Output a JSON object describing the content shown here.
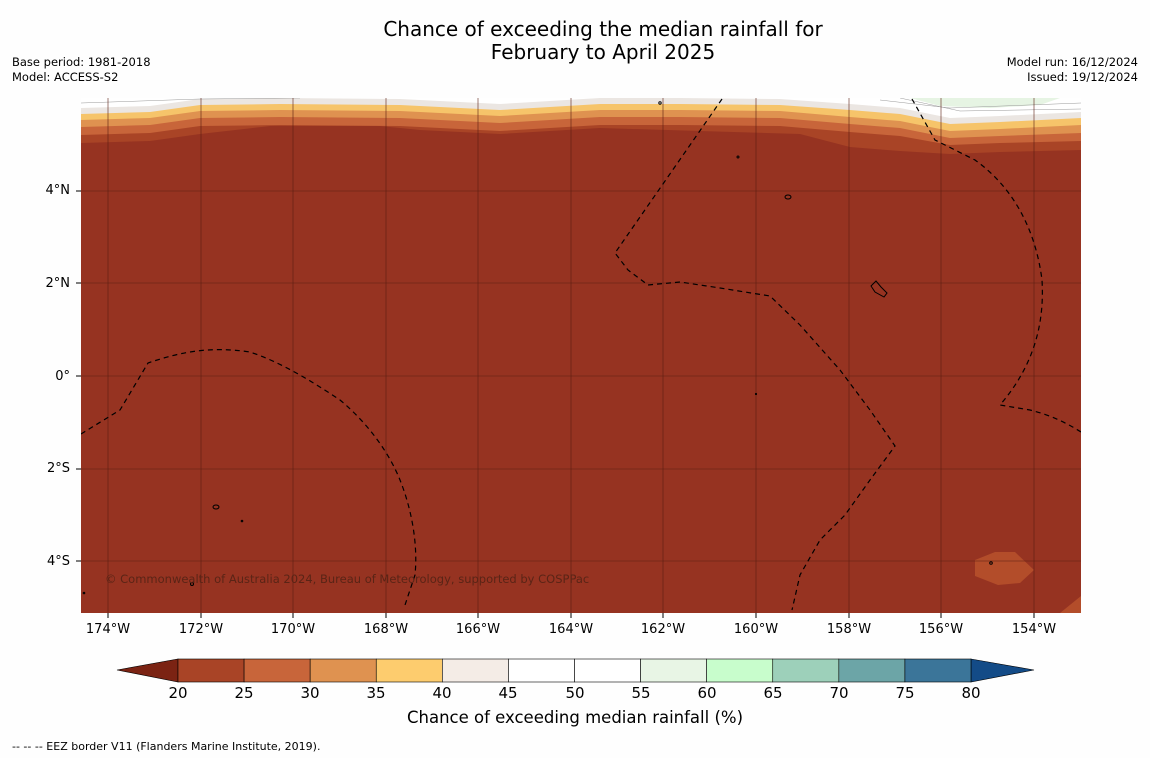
{
  "title_line1": "Chance of exceeding the median rainfall for",
  "title_line2": "February to April 2025",
  "meta": {
    "base_period": "Base period: 1981-2018",
    "model": "Model: ACCESS-S2",
    "model_run": "Model run: 16/12/2024",
    "issued": "Issued: 19/12/2024"
  },
  "copyright": "© Commonwealth of Australia 2024, Bureau of Meteorology, supported by COSPPac",
  "footnote": "--  --  -- EEZ border V11 (Flanders Marine Institute, 2019).",
  "lat_labels": [
    "4°N",
    "2°N",
    "0°",
    "2°S",
    "4°S"
  ],
  "lon_labels": [
    "174°W",
    "172°W",
    "170°W",
    "168°W",
    "166°W",
    "164°W",
    "162°W",
    "160°W",
    "158°W",
    "156°W",
    "154°W"
  ],
  "colorbar": {
    "title": "Chance of exceeding median rainfall (%)",
    "ticks": [
      "20",
      "25",
      "30",
      "35",
      "40",
      "45",
      "50",
      "55",
      "60",
      "65",
      "70",
      "75",
      "80"
    ],
    "under_color": "#7b2313",
    "over_color": "#134b87",
    "colors": [
      "#a94426",
      "#c8653a",
      "#df9250",
      "#fdcc6e",
      "#f4ece6",
      "#ffffff",
      "#ffffff",
      "#e8f5e5",
      "#c8fdcc",
      "#9dd0ba",
      "#6ca5a7",
      "#3b7599"
    ]
  },
  "map": {
    "dominant_color": "#963321",
    "lat_range": [
      "5°S",
      "6°N"
    ],
    "lon_range": [
      "175°W",
      "153°W"
    ]
  }
}
